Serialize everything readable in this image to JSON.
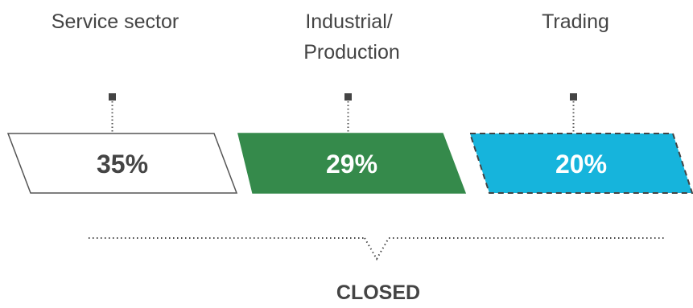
{
  "segments": [
    {
      "label_lines": [
        "Service sector"
      ],
      "value": "35%",
      "fill": "#ffffff",
      "stroke": "#555555",
      "text_color": "#444444",
      "dashed": false
    },
    {
      "label_lines": [
        "Industrial/",
        "Production"
      ],
      "value": "29%",
      "fill": "#358a4b",
      "stroke": "#358a4b",
      "text_color": "#ffffff",
      "dashed": false
    },
    {
      "label_lines": [
        "Trading"
      ],
      "value": "20%",
      "fill": "#16b4dc",
      "stroke": "#444444",
      "text_color": "#ffffff",
      "dashed": true
    }
  ],
  "footer": {
    "label": "CLOSED"
  }
}
